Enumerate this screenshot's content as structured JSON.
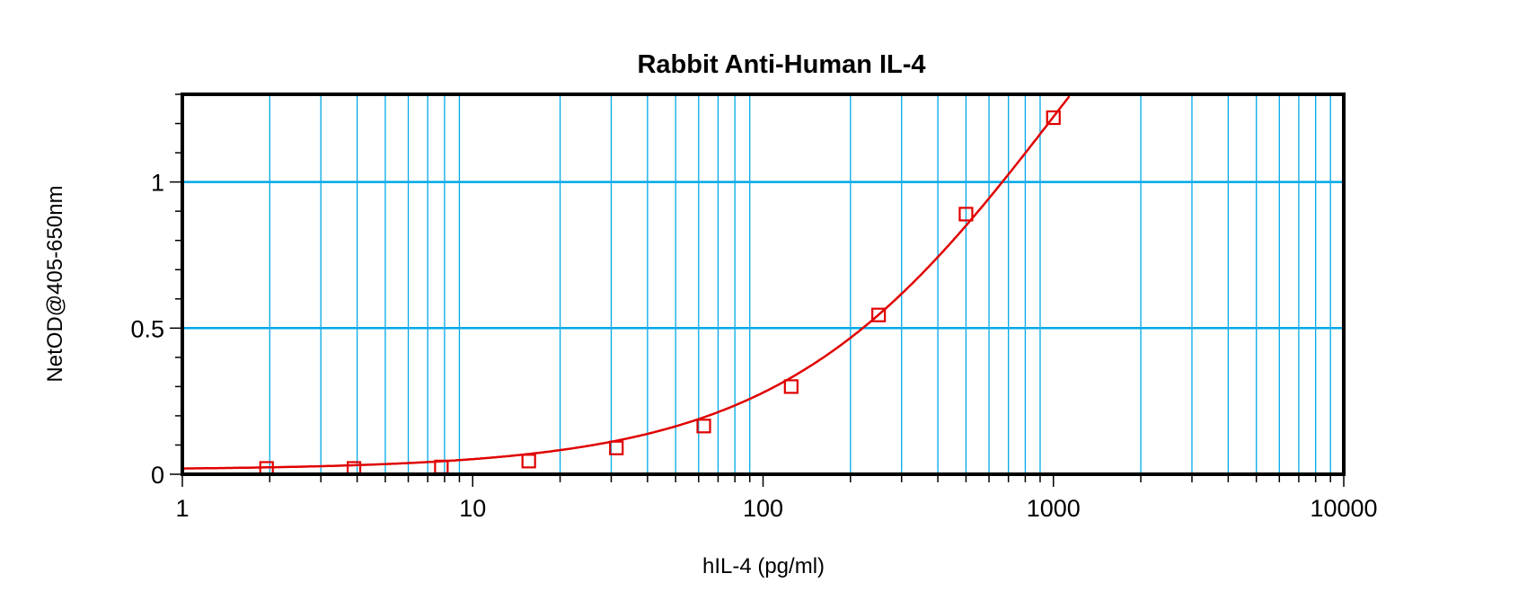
{
  "chart_data": {
    "type": "line",
    "title": "Rabbit Anti-Human IL-4",
    "xlabel": "hIL-4 (pg/ml)",
    "ylabel": "NetOD@405-650nm",
    "xscale": "log",
    "xlim": [
      1,
      10000
    ],
    "ylim": [
      0,
      1.3
    ],
    "x_ticks": [
      "1",
      "10",
      "100",
      "1000",
      "10000"
    ],
    "y_ticks": [
      "0",
      "0.5",
      "1"
    ],
    "grid": true,
    "series": [
      {
        "marker": "open-square",
        "color": "#e00000",
        "x": [
          1.95,
          3.9,
          7.8,
          15.6,
          31.25,
          62.5,
          125,
          250,
          500,
          1000
        ],
        "y": [
          0.02,
          0.02,
          0.025,
          0.045,
          0.09,
          0.165,
          0.3,
          0.545,
          0.89,
          1.22
        ]
      }
    ],
    "colors": {
      "grid": "#00a8e8",
      "curve": "#e00000",
      "frame": "#000000"
    }
  }
}
